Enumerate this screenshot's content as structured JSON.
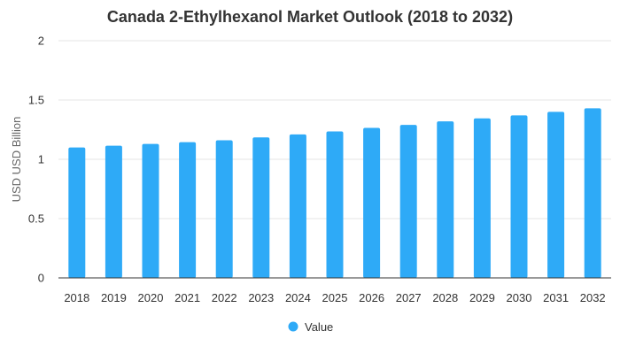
{
  "chart_data": {
    "type": "bar",
    "title": "Canada 2-Ethylhexanol Market Outlook (2018 to 2032)",
    "ylabel": "USD USD Billion",
    "xlabel": "",
    "categories": [
      "2018",
      "2019",
      "2020",
      "2021",
      "2022",
      "2023",
      "2024",
      "2025",
      "2026",
      "2027",
      "2028",
      "2029",
      "2030",
      "2031",
      "2032"
    ],
    "series": [
      {
        "name": "Value",
        "color": "#2eaaf7",
        "values": [
          1.1,
          1.115,
          1.13,
          1.145,
          1.16,
          1.185,
          1.21,
          1.235,
          1.265,
          1.29,
          1.32,
          1.345,
          1.37,
          1.4,
          1.43
        ]
      }
    ],
    "ylim": [
      0,
      2
    ],
    "yticks": [
      "0",
      "0.5",
      "1",
      "1.5",
      "2"
    ],
    "grid": true,
    "legend": "bottom"
  }
}
